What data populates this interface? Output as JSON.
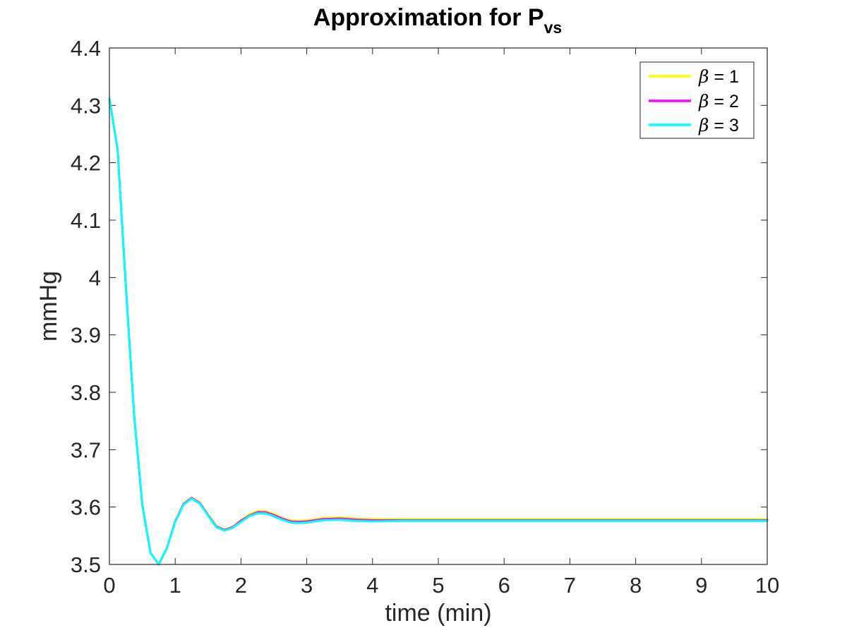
{
  "chart_data": {
    "type": "line",
    "title": "Approximation for P",
    "title_subscript": "vs",
    "xlabel": "time (min)",
    "ylabel": "mmHg",
    "xlim": [
      0,
      10
    ],
    "ylim": [
      3.5,
      4.4
    ],
    "xticks": [
      "0",
      "1",
      "2",
      "3",
      "4",
      "5",
      "6",
      "7",
      "8",
      "9",
      "10"
    ],
    "yticks": [
      "3.5",
      "3.6",
      "3.7",
      "3.8",
      "3.9",
      "4",
      "4.1",
      "4.2",
      "4.3",
      "4.4"
    ],
    "grid": false,
    "legend_position": "top-right",
    "series": [
      {
        "name": "β = 1",
        "beta_symbol": "β",
        "beta_rest": " = 1",
        "color": "#ffff00",
        "x": [
          0,
          0.125,
          0.25,
          0.375,
          0.5,
          0.625,
          0.75,
          0.875,
          1.0,
          1.125,
          1.25,
          1.375,
          1.5,
          1.625,
          1.75,
          1.875,
          2.0,
          2.125,
          2.25,
          2.375,
          2.5,
          2.625,
          2.75,
          2.875,
          3.0,
          3.25,
          3.5,
          3.75,
          4.0,
          4.5,
          5.0,
          6.0,
          7.0,
          8.0,
          9.0,
          10.0
        ],
        "y": [
          4.312,
          4.222,
          3.985,
          3.762,
          3.604,
          3.52,
          3.5,
          3.529,
          3.575,
          3.606,
          3.617,
          3.608,
          3.587,
          3.567,
          3.561,
          3.566,
          3.577,
          3.587,
          3.593,
          3.593,
          3.588,
          3.581,
          3.577,
          3.576,
          3.577,
          3.581,
          3.582,
          3.58,
          3.579,
          3.579,
          3.579,
          3.579,
          3.579,
          3.579,
          3.579,
          3.579
        ]
      },
      {
        "name": "β = 2",
        "beta_symbol": "β",
        "beta_rest": " = 2",
        "color": "#ff00ff",
        "x": [
          0,
          0.125,
          0.25,
          0.375,
          0.5,
          0.625,
          0.75,
          0.875,
          1.0,
          1.125,
          1.25,
          1.375,
          1.5,
          1.625,
          1.75,
          1.875,
          2.0,
          2.125,
          2.25,
          2.375,
          2.5,
          2.625,
          2.75,
          2.875,
          3.0,
          3.25,
          3.5,
          3.75,
          4.0,
          4.5,
          5.0,
          6.0,
          7.0,
          8.0,
          9.0,
          10.0
        ],
        "y": [
          4.312,
          4.222,
          3.985,
          3.762,
          3.604,
          3.52,
          3.5,
          3.529,
          3.575,
          3.605,
          3.616,
          3.607,
          3.586,
          3.566,
          3.56,
          3.565,
          3.576,
          3.585,
          3.591,
          3.591,
          3.586,
          3.58,
          3.575,
          3.574,
          3.575,
          3.579,
          3.58,
          3.578,
          3.577,
          3.577,
          3.577,
          3.577,
          3.577,
          3.577,
          3.577,
          3.577
        ]
      },
      {
        "name": "β = 3",
        "beta_symbol": "β",
        "beta_rest": " = 3",
        "color": "#00ffff",
        "x": [
          0,
          0.125,
          0.25,
          0.375,
          0.5,
          0.625,
          0.75,
          0.875,
          1.0,
          1.125,
          1.25,
          1.375,
          1.5,
          1.625,
          1.75,
          1.875,
          2.0,
          2.125,
          2.25,
          2.375,
          2.5,
          2.625,
          2.75,
          2.875,
          3.0,
          3.25,
          3.5,
          3.75,
          4.0,
          4.5,
          5.0,
          6.0,
          7.0,
          8.0,
          9.0,
          10.0
        ],
        "y": [
          4.312,
          4.222,
          3.985,
          3.762,
          3.604,
          3.52,
          3.5,
          3.529,
          3.574,
          3.604,
          3.615,
          3.606,
          3.585,
          3.565,
          3.559,
          3.564,
          3.574,
          3.584,
          3.589,
          3.589,
          3.584,
          3.578,
          3.573,
          3.572,
          3.573,
          3.577,
          3.578,
          3.576,
          3.575,
          3.576,
          3.576,
          3.576,
          3.576,
          3.576,
          3.576,
          3.576
        ]
      }
    ]
  }
}
